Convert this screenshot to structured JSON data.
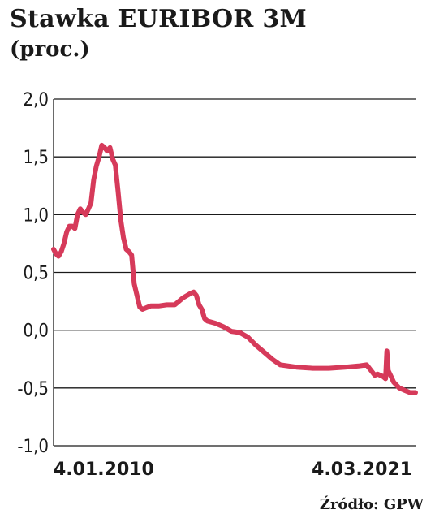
{
  "title": "Stawka EURIBOR 3M",
  "subtitle": "(proc.)",
  "source": "Źródło: GPW",
  "colors": {
    "line": "#d63a5a",
    "grid": "#1a1a1a",
    "text": "#1a1a1a"
  },
  "chart_data": {
    "type": "line",
    "title": "Stawka EURIBOR 3M",
    "subtitle": "(proc.)",
    "ylim": [
      -1.0,
      2.0
    ],
    "yticks": [
      2.0,
      1.5,
      1.0,
      0.5,
      0.0,
      -0.5,
      -1.0
    ],
    "ytick_labels": [
      "2,0",
      "1,5",
      "1,0",
      "0,5",
      "0,0",
      "-0,5",
      "-1,0"
    ],
    "xlim": [
      "2010-01-04",
      "2021-03-04"
    ],
    "xtick_labels": [
      "4.01.2010",
      "4.03.2021"
    ],
    "grid": true,
    "series": [
      {
        "x": [
          "2010-01-04",
          "2010-02-01",
          "2010-03-01",
          "2010-04-01",
          "2010-05-01",
          "2010-06-01",
          "2010-07-01",
          "2010-08-01",
          "2010-09-01",
          "2010-10-01",
          "2010-11-01",
          "2010-12-01",
          "2011-01-01",
          "2011-02-01",
          "2011-03-01",
          "2011-04-01",
          "2011-05-01",
          "2011-06-01",
          "2011-07-01",
          "2011-08-01",
          "2011-09-01",
          "2011-10-01",
          "2011-11-01",
          "2011-12-01",
          "2012-01-01",
          "2012-02-01",
          "2012-03-01",
          "2012-04-01",
          "2012-05-01",
          "2012-06-01",
          "2012-07-01",
          "2012-08-01",
          "2012-09-01",
          "2012-10-01",
          "2013-01-01",
          "2013-04-01",
          "2013-07-01",
          "2013-10-01",
          "2014-01-01",
          "2014-04-01",
          "2014-05-01",
          "2014-06-01",
          "2014-07-01",
          "2014-08-01",
          "2014-09-01",
          "2014-10-01",
          "2015-01-01",
          "2015-04-01",
          "2015-07-01",
          "2015-10-01",
          "2016-01-01",
          "2016-04-01",
          "2016-07-01",
          "2016-10-01",
          "2017-01-01",
          "2017-07-01",
          "2018-01-01",
          "2018-07-01",
          "2019-01-01",
          "2019-06-01",
          "2019-09-01",
          "2019-12-01",
          "2020-01-01",
          "2020-03-01",
          "2020-04-01",
          "2020-04-15",
          "2020-05-01",
          "2020-06-01",
          "2020-07-01",
          "2020-09-01",
          "2020-11-01",
          "2021-01-01",
          "2021-03-04"
        ],
        "y": [
          0.7,
          0.66,
          0.64,
          0.68,
          0.75,
          0.85,
          0.9,
          0.9,
          0.88,
          1.0,
          1.05,
          1.02,
          1.0,
          1.05,
          1.1,
          1.3,
          1.42,
          1.5,
          1.6,
          1.58,
          1.55,
          1.58,
          1.48,
          1.43,
          1.2,
          0.95,
          0.8,
          0.7,
          0.68,
          0.65,
          0.4,
          0.3,
          0.2,
          0.18,
          0.21,
          0.21,
          0.22,
          0.22,
          0.28,
          0.32,
          0.33,
          0.3,
          0.22,
          0.18,
          0.1,
          0.08,
          0.06,
          0.03,
          -0.01,
          -0.02,
          -0.06,
          -0.13,
          -0.19,
          -0.25,
          -0.3,
          -0.32,
          -0.33,
          -0.33,
          -0.32,
          -0.31,
          -0.3,
          -0.39,
          -0.38,
          -0.4,
          -0.42,
          -0.18,
          -0.35,
          -0.4,
          -0.45,
          -0.5,
          -0.52,
          -0.54,
          -0.54
        ]
      }
    ]
  }
}
